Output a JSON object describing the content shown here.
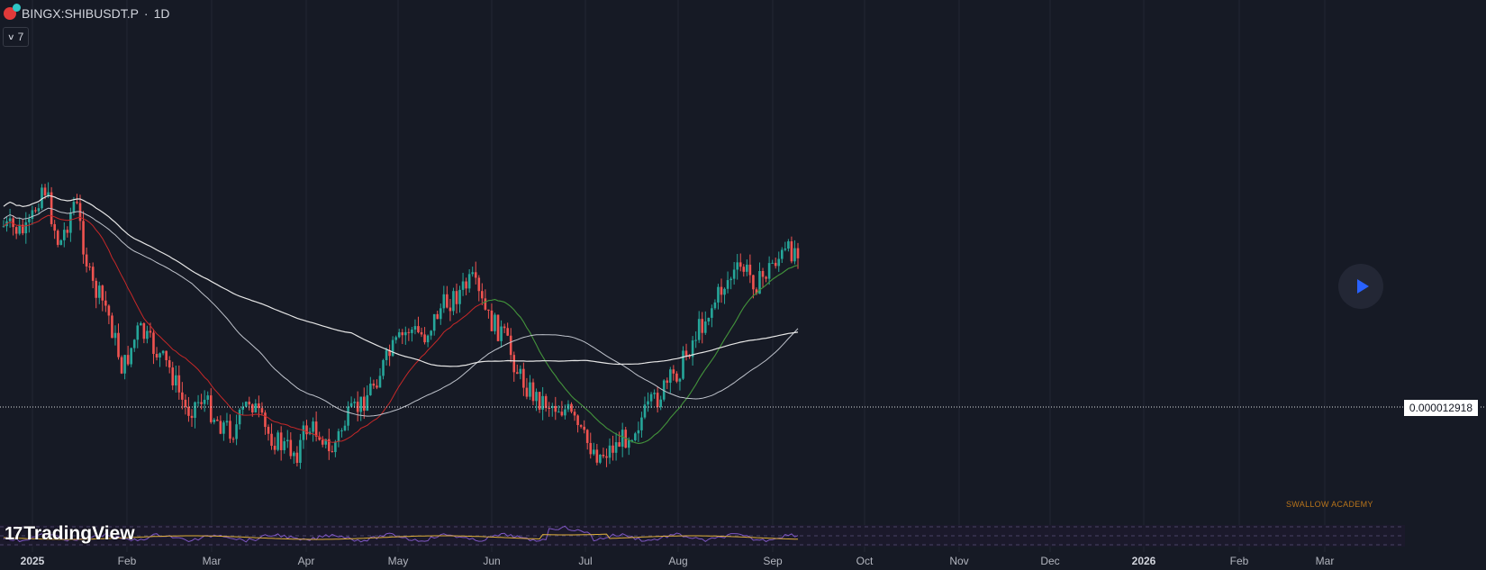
{
  "symbol": {
    "exchange_symbol": "BINGX:SHIBUSDT.P",
    "separator": "·",
    "interval": "1D"
  },
  "indicators_toggle": {
    "count": "7"
  },
  "price_scale": {
    "last_price": "0.000012918"
  },
  "watermark": "SWALLOW ACADEMY",
  "brand": {
    "logo_text": "TradingView",
    "logo_mark": "17"
  },
  "time_axis": {
    "labels": [
      {
        "text": "2025",
        "bold": true
      },
      {
        "text": "Feb",
        "bold": false
      },
      {
        "text": "Mar",
        "bold": false
      },
      {
        "text": "Apr",
        "bold": false
      },
      {
        "text": "May",
        "bold": false
      },
      {
        "text": "Jun",
        "bold": false
      },
      {
        "text": "Jul",
        "bold": false
      },
      {
        "text": "Aug",
        "bold": false
      },
      {
        "text": "Sep",
        "bold": false
      },
      {
        "text": "Oct",
        "bold": false
      },
      {
        "text": "Nov",
        "bold": false
      },
      {
        "text": "Dec",
        "bold": false
      },
      {
        "text": "2026",
        "bold": true
      },
      {
        "text": "Feb",
        "bold": false
      },
      {
        "text": "Mar",
        "bold": false
      }
    ]
  },
  "colors": {
    "background": "#161a25",
    "grid": "#222633",
    "candle_up": "#26a69a",
    "candle_down": "#ef5350",
    "ma_red": "#c62828",
    "ma_green": "#2e9e3e",
    "ma_light": "#bfc3cc",
    "ma_white": "#e6e6e6",
    "rsi_line": "#7e57c2",
    "rsi_ma": "#e0b03a",
    "last_price_line": "#ffffff"
  },
  "chart_data": {
    "type": "candlestick",
    "interval": "1D",
    "moving_average_lines": 4,
    "last_price": 1.2918e-05,
    "price_path_relative": [
      [
        0.0,
        0.72
      ],
      [
        0.03,
        0.7
      ],
      [
        0.05,
        0.85
      ],
      [
        0.07,
        0.66
      ],
      [
        0.09,
        0.8
      ],
      [
        0.11,
        0.55
      ],
      [
        0.13,
        0.48
      ],
      [
        0.15,
        0.3
      ],
      [
        0.17,
        0.42
      ],
      [
        0.19,
        0.36
      ],
      [
        0.21,
        0.3
      ],
      [
        0.23,
        0.18
      ],
      [
        0.25,
        0.22
      ],
      [
        0.27,
        0.15
      ],
      [
        0.29,
        0.12
      ],
      [
        0.31,
        0.22
      ],
      [
        0.33,
        0.12
      ],
      [
        0.35,
        0.08
      ],
      [
        0.37,
        0.06
      ],
      [
        0.38,
        0.13
      ],
      [
        0.4,
        0.12
      ],
      [
        0.41,
        0.05
      ],
      [
        0.43,
        0.15
      ],
      [
        0.45,
        0.2
      ],
      [
        0.47,
        0.28
      ],
      [
        0.49,
        0.36
      ],
      [
        0.51,
        0.42
      ],
      [
        0.53,
        0.4
      ],
      [
        0.55,
        0.48
      ],
      [
        0.57,
        0.52
      ],
      [
        0.59,
        0.56
      ],
      [
        0.61,
        0.45
      ],
      [
        0.63,
        0.4
      ],
      [
        0.65,
        0.28
      ],
      [
        0.67,
        0.22
      ],
      [
        0.69,
        0.2
      ],
      [
        0.71,
        0.18
      ],
      [
        0.73,
        0.1
      ],
      [
        0.75,
        0.05
      ],
      [
        0.77,
        0.08
      ],
      [
        0.79,
        0.12
      ],
      [
        0.81,
        0.18
      ],
      [
        0.83,
        0.24
      ],
      [
        0.85,
        0.3
      ],
      [
        0.87,
        0.4
      ],
      [
        0.89,
        0.48
      ],
      [
        0.91,
        0.56
      ],
      [
        0.93,
        0.6
      ],
      [
        0.95,
        0.55
      ],
      [
        0.97,
        0.62
      ],
      [
        1.0,
        0.66
      ]
    ]
  }
}
